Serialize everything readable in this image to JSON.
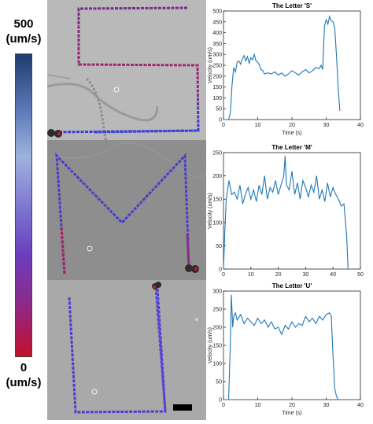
{
  "colorbar": {
    "max_label": "500",
    "max_unit": "(um/s)",
    "min_label": "0",
    "min_unit": "(um/s)",
    "colors": [
      "#1f3c6e",
      "#5a78b8",
      "#9fb2de",
      "#7a72cf",
      "#6b3fbe",
      "#8a2a8c",
      "#c4102a"
    ]
  },
  "chart_data": [
    {
      "type": "line",
      "title": "The Letter 'S'",
      "xlabel": "Time (s)",
      "ylabel": "Velocity (um/s)",
      "xlim": [
        0,
        40
      ],
      "ylim": [
        0,
        500
      ],
      "xticks": [
        0,
        10,
        20,
        30,
        40
      ],
      "yticks": [
        0,
        50,
        100,
        150,
        200,
        250,
        300,
        350,
        400,
        450,
        500
      ],
      "color": "#1f77b4",
      "series": [
        {
          "x": [
            0,
            1.5,
            2.0,
            2.5,
            3.0,
            3.5,
            4.0,
            4.5,
            5.0,
            5.5,
            6.0,
            6.5,
            7.0,
            7.5,
            8.0,
            8.5,
            9.0,
            9.5,
            10.0,
            10.5,
            11.0,
            11.5,
            12.0,
            13.0,
            14.0,
            15.0,
            16.0,
            17.0,
            18.0,
            19.0,
            20.0,
            21.0,
            22.0,
            23.0,
            24.0,
            25.0,
            26.0,
            27.0,
            28.0,
            28.5,
            29.0,
            29.5,
            30.0,
            30.5,
            31.0,
            31.5,
            32.0,
            32.5,
            33.0,
            33.5,
            34.0
          ],
          "y": [
            0,
            0,
            30,
            160,
            240,
            220,
            265,
            270,
            255,
            280,
            295,
            270,
            290,
            260,
            285,
            275,
            300,
            270,
            265,
            250,
            230,
            225,
            210,
            215,
            210,
            220,
            205,
            215,
            200,
            210,
            225,
            215,
            205,
            220,
            230,
            215,
            225,
            240,
            235,
            250,
            230,
            430,
            460,
            440,
            475,
            455,
            450,
            420,
            300,
            150,
            40
          ]
        }
      ]
    },
    {
      "type": "line",
      "title": "The Letter 'M'",
      "xlabel": "Time (s)",
      "ylabel": "Velocity (um/s)",
      "xlim": [
        0,
        50
      ],
      "ylim": [
        0,
        250
      ],
      "xticks": [
        0,
        10,
        20,
        30,
        40,
        50
      ],
      "yticks": [
        0,
        50,
        100,
        150,
        200,
        250
      ],
      "color": "#1f77b4",
      "series": [
        {
          "x": [
            0,
            0.5,
            1,
            2,
            3,
            4,
            5,
            6,
            7,
            8,
            9,
            10,
            11,
            12,
            13,
            14,
            15,
            16,
            17,
            18,
            19,
            20,
            21,
            22,
            22.5,
            23,
            24,
            25,
            26,
            27,
            28,
            29,
            30,
            31,
            32,
            33,
            34,
            35,
            36,
            37,
            38,
            39,
            40,
            41,
            42,
            43,
            44,
            45,
            45.5
          ],
          "y": [
            0,
            80,
            150,
            190,
            160,
            165,
            150,
            180,
            140,
            160,
            175,
            150,
            170,
            145,
            180,
            160,
            200,
            150,
            175,
            165,
            190,
            160,
            180,
            200,
            243,
            180,
            170,
            210,
            160,
            185,
            150,
            190,
            175,
            155,
            180,
            165,
            200,
            150,
            170,
            145,
            185,
            155,
            175,
            160,
            150,
            135,
            140,
            70,
            0
          ]
        }
      ]
    },
    {
      "type": "line",
      "title": "The Letter 'U'",
      "xlabel": "Time (s)",
      "ylabel": "Velocity (um/s)",
      "xlim": [
        0,
        40
      ],
      "ylim": [
        0,
        300
      ],
      "xticks": [
        0,
        10,
        20,
        30,
        40
      ],
      "yticks": [
        0,
        50,
        100,
        150,
        200,
        250,
        300
      ],
      "color": "#1f77b4",
      "series": [
        {
          "x": [
            0,
            1.5,
            2.0,
            2.3,
            2.7,
            3.0,
            3.5,
            4.0,
            5.0,
            6.0,
            7.0,
            8.0,
            9.0,
            10.0,
            11.0,
            12.0,
            13.0,
            14.0,
            15.0,
            16.0,
            17.0,
            18.0,
            19.0,
            20.0,
            21.0,
            22.0,
            23.0,
            24.0,
            25.0,
            26.0,
            27.0,
            28.0,
            29.0,
            30.0,
            31.0,
            31.5,
            32.0,
            32.5,
            33.0,
            33.5
          ],
          "y": [
            0,
            0,
            150,
            290,
            200,
            230,
            240,
            220,
            235,
            210,
            225,
            215,
            205,
            225,
            210,
            220,
            200,
            215,
            195,
            200,
            180,
            205,
            195,
            215,
            200,
            210,
            205,
            230,
            215,
            225,
            210,
            230,
            220,
            235,
            240,
            230,
            120,
            30,
            10,
            0
          ]
        }
      ]
    }
  ]
}
